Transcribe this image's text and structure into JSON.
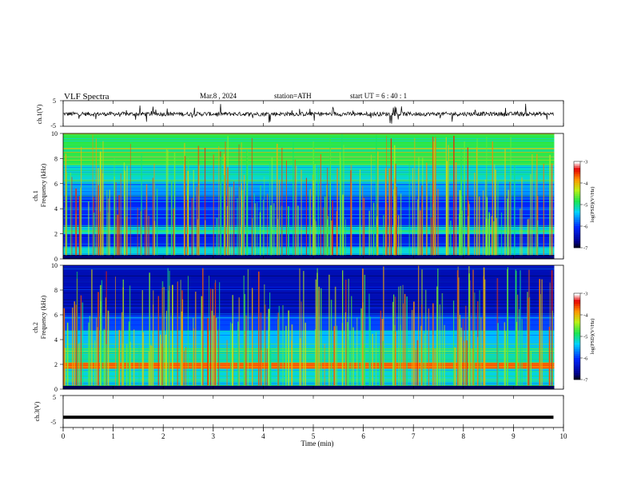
{
  "header": {
    "title": "VLF  Spectra",
    "date": "Mar.8  , 2024",
    "station": "station=ATH",
    "start": "start  UT  =   6  : 40 : 1"
  },
  "chart_data": [
    {
      "type": "line",
      "name": "ch1-waveform",
      "ylabel": "ch.1(V)",
      "ylim": [
        -5,
        5
      ],
      "yticks": [
        "5",
        "-5"
      ],
      "xlim": [
        0,
        10
      ],
      "baseline_v": -0.2,
      "visible_span_min": [
        0,
        9.8
      ]
    },
    {
      "type": "heatmap",
      "name": "ch1-spectrogram",
      "ylabel_top": "ch.1",
      "ylabel": "Frequency (kHz)",
      "ylim": [
        0,
        10
      ],
      "yticks": [
        "0",
        "2",
        "4",
        "6",
        "8",
        "10"
      ],
      "xlim": [
        0,
        10
      ],
      "colorbar": {
        "label": "log(PSD)(V²/Hz)",
        "range": [
          -7,
          -3
        ],
        "ticks": [
          "-3",
          "-4",
          "-5",
          "-6",
          "-7"
        ]
      }
    },
    {
      "type": "heatmap",
      "name": "ch2-spectrogram",
      "ylabel_top": "ch.2",
      "ylabel": "Frequency (kHz)",
      "ylim": [
        0,
        10
      ],
      "yticks": [
        "0",
        "2",
        "4",
        "6",
        "8",
        "10"
      ],
      "xlim": [
        0,
        10
      ],
      "colorbar": {
        "label": "log(PSD)(V²/Hz)",
        "range": [
          -7,
          -3
        ],
        "ticks": [
          "-3",
          "-4",
          "-5",
          "-6",
          "-7"
        ]
      }
    },
    {
      "type": "line",
      "name": "ch3-waveform",
      "ylabel": "ch.3(V)",
      "ylim": [
        -5,
        5
      ],
      "yticks": [
        "5",
        "-5"
      ],
      "xlim": [
        0,
        10
      ],
      "baseline_v": -1.8,
      "visible_span_min": [
        0,
        9.8
      ]
    }
  ],
  "xaxis": {
    "label": "Time  (min)",
    "ticks": [
      "0",
      "1",
      "2",
      "3",
      "4",
      "5",
      "6",
      "7",
      "8",
      "9",
      "10"
    ]
  }
}
